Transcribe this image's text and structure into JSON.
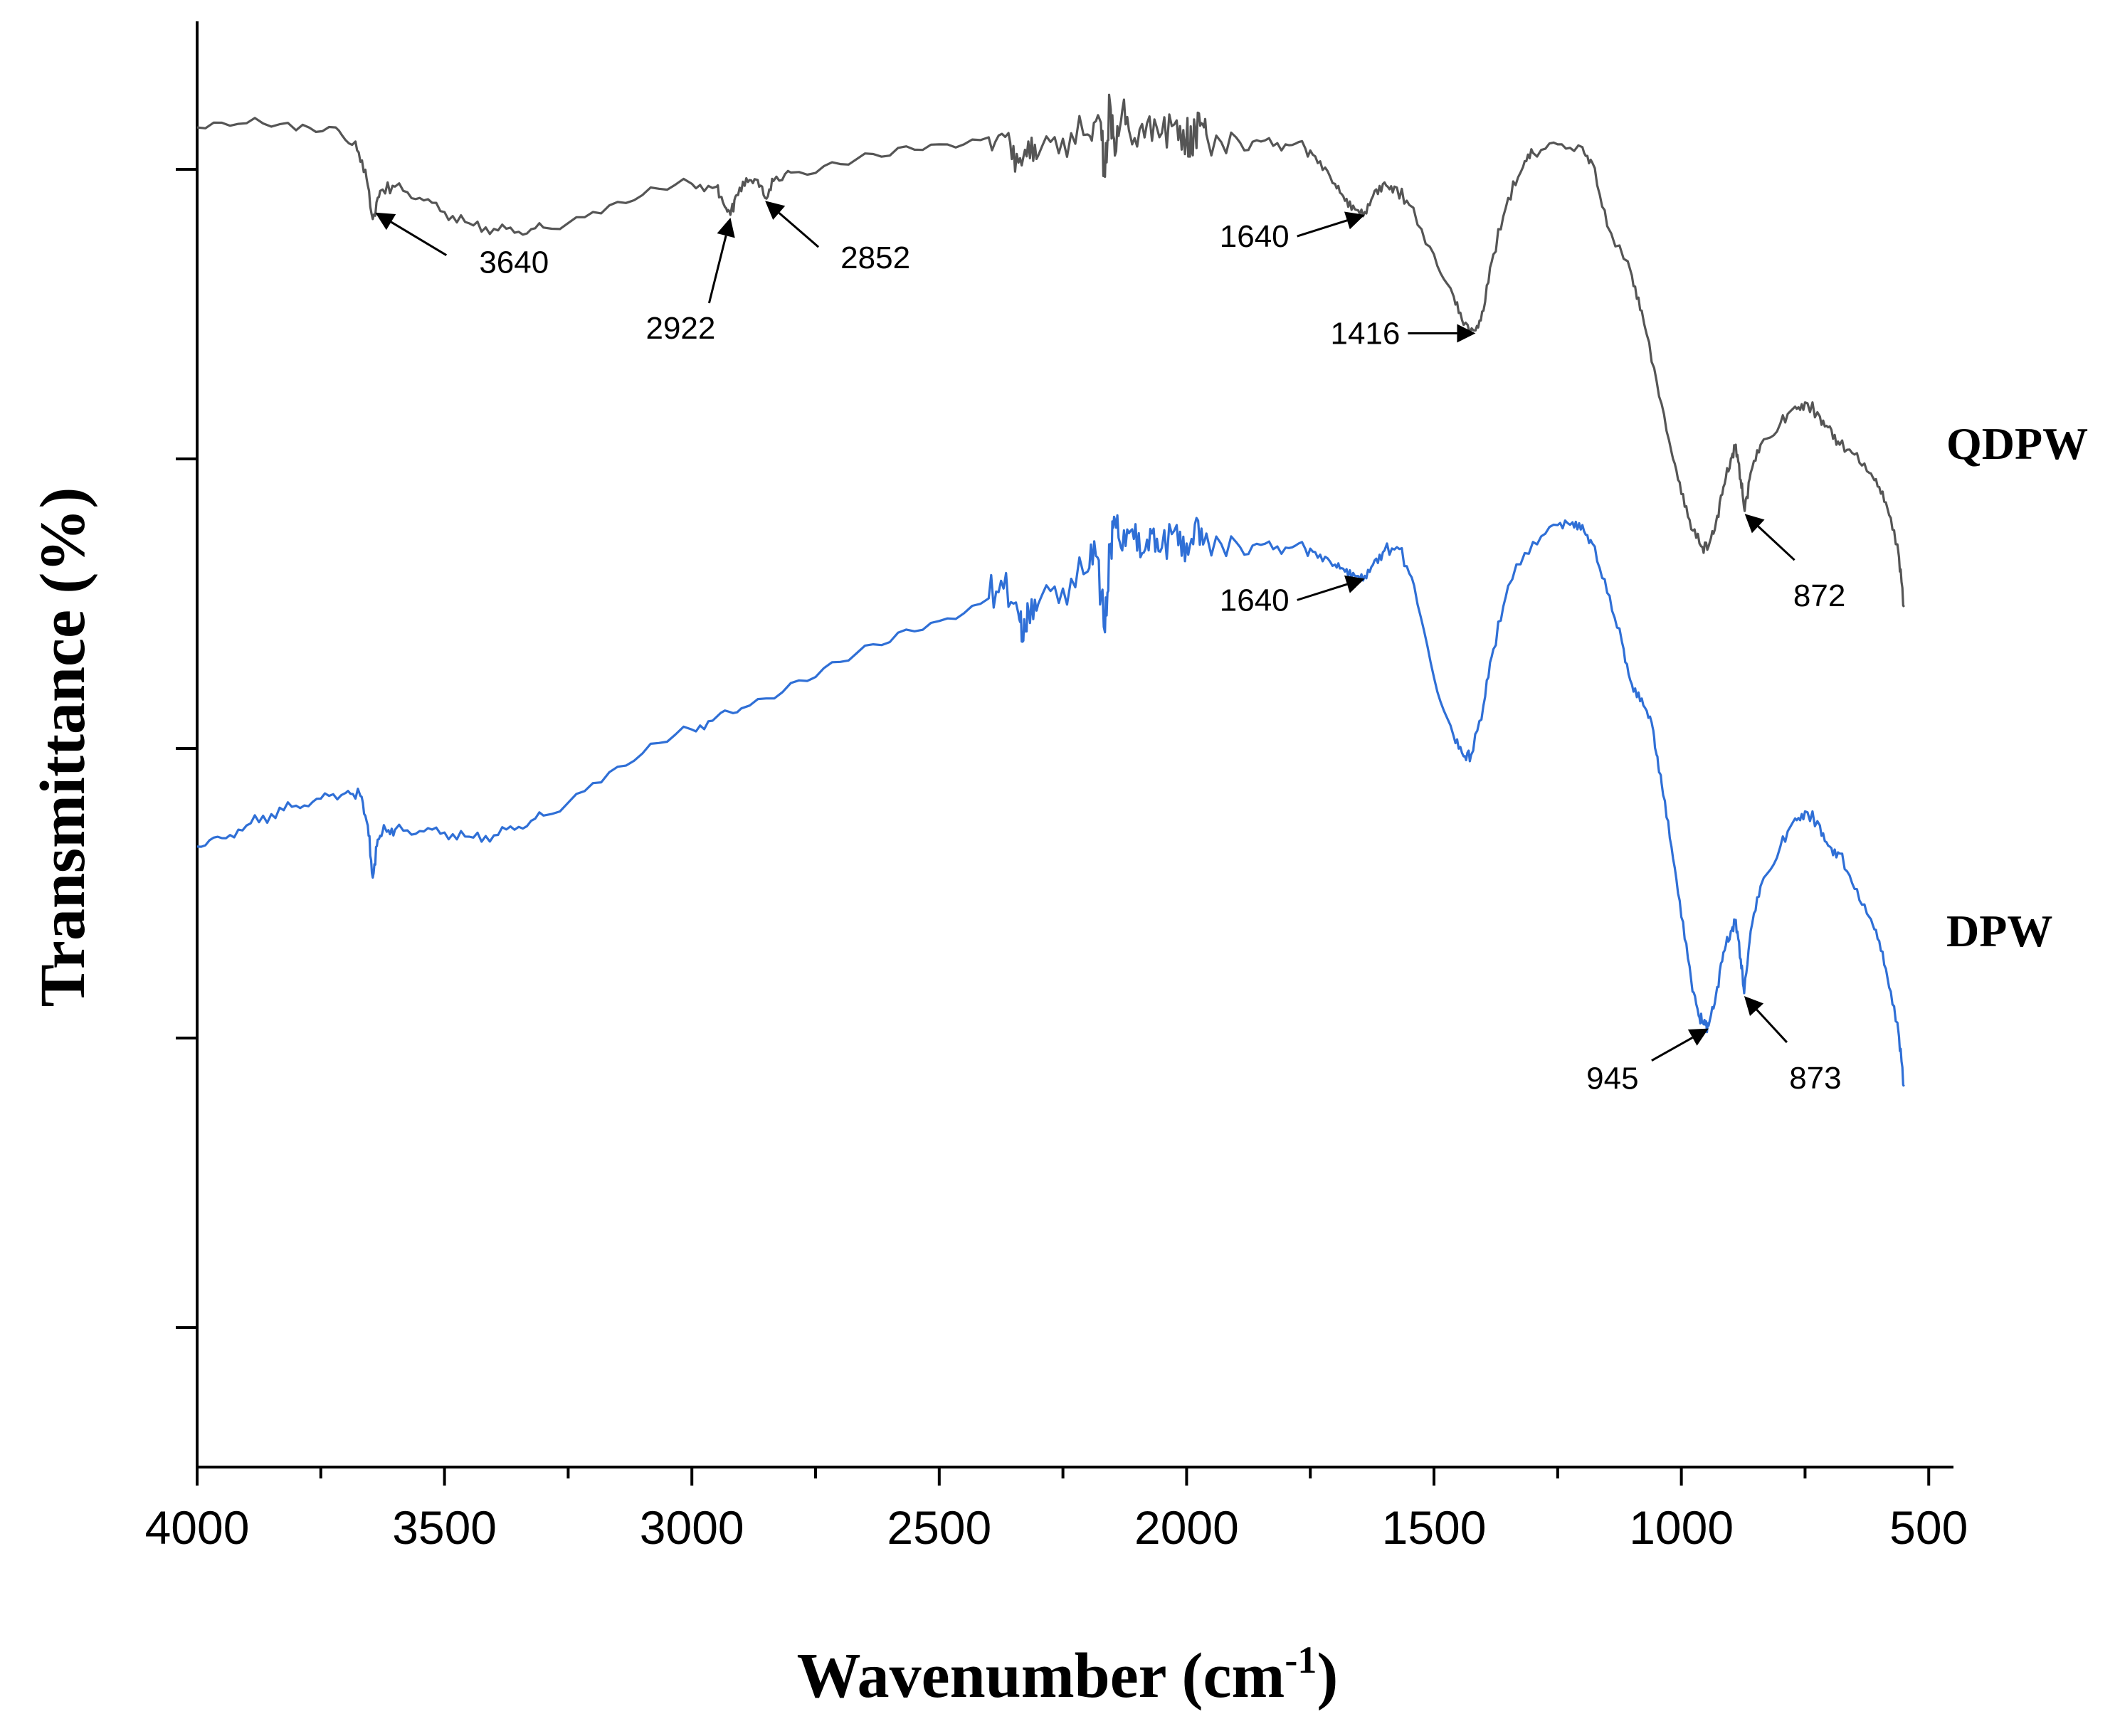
{
  "chart_data": {
    "type": "line",
    "title": "",
    "xlabel_main": "Wavenumber (cm",
    "xlabel_sup": "-1",
    "xlabel_close": ")",
    "ylabel": "Transmittance (%)",
    "xlim": [
      4000,
      450
    ],
    "x_reversed": true,
    "xticks": [
      4000,
      3500,
      3000,
      2500,
      2000,
      1500,
      1000,
      500
    ],
    "ylim": [
      0,
      100
    ],
    "ytick_count": 5,
    "grid": false,
    "colors": {
      "QDPW": "#555555",
      "DPW": "#2f6fd6",
      "axis": "#000000"
    },
    "series": [
      {
        "name": "QDPW",
        "points": [
          [
            4000,
            95
          ],
          [
            3900,
            95.3
          ],
          [
            3800,
            94.8
          ],
          [
            3720,
            95
          ],
          [
            3680,
            94
          ],
          [
            3660,
            92
          ],
          [
            3645,
            88.5
          ],
          [
            3630,
            90.5
          ],
          [
            3600,
            90.8
          ],
          [
            3550,
            90
          ],
          [
            3500,
            89
          ],
          [
            3450,
            88.2
          ],
          [
            3400,
            87.8
          ],
          [
            3350,
            87.6
          ],
          [
            3300,
            87.9
          ],
          [
            3200,
            89
          ],
          [
            3100,
            90.2
          ],
          [
            3000,
            91
          ],
          [
            2950,
            90.8
          ],
          [
            2935,
            89.5
          ],
          [
            2922,
            88.8
          ],
          [
            2910,
            90.2
          ],
          [
            2890,
            91.4
          ],
          [
            2870,
            91.3
          ],
          [
            2852,
            90.0
          ],
          [
            2835,
            91.2
          ],
          [
            2800,
            91.8
          ],
          [
            2700,
            92.4
          ],
          [
            2600,
            93
          ],
          [
            2500,
            93.8
          ],
          [
            2400,
            94.3
          ],
          [
            2360,
            94.6
          ],
          [
            2340,
            92.5
          ],
          [
            2320,
            94
          ],
          [
            2300,
            93
          ],
          [
            2250,
            94.2
          ],
          [
            2200,
            94.5
          ],
          [
            2175,
            95.5
          ],
          [
            2165,
            91.5
          ],
          [
            2155,
            96.8
          ],
          [
            2145,
            93
          ],
          [
            2130,
            96.2
          ],
          [
            2110,
            93.8
          ],
          [
            2080,
            95.3
          ],
          [
            2050,
            94.6
          ],
          [
            2020,
            95.5
          ],
          [
            2000,
            94.4
          ],
          [
            1990,
            93.3
          ],
          [
            1975,
            96
          ],
          [
            1960,
            94.5
          ],
          [
            1900,
            94.3
          ],
          [
            1850,
            94
          ],
          [
            1800,
            93.8
          ],
          [
            1760,
            93.5
          ],
          [
            1730,
            92.6
          ],
          [
            1700,
            91
          ],
          [
            1680,
            89.8
          ],
          [
            1660,
            89.2
          ],
          [
            1640,
            89.0
          ],
          [
            1620,
            90.5
          ],
          [
            1600,
            91.1
          ],
          [
            1580,
            90.8
          ],
          [
            1550,
            89.5
          ],
          [
            1500,
            86
          ],
          [
            1460,
            83
          ],
          [
            1440,
            81
          ],
          [
            1416,
            80.6
          ],
          [
            1400,
            82
          ],
          [
            1380,
            86
          ],
          [
            1350,
            90
          ],
          [
            1320,
            92.2
          ],
          [
            1300,
            93.2
          ],
          [
            1250,
            93.8
          ],
          [
            1200,
            93.6
          ],
          [
            1180,
            92.5
          ],
          [
            1150,
            88
          ],
          [
            1100,
            84.5
          ],
          [
            1080,
            82
          ],
          [
            1050,
            77
          ],
          [
            1020,
            72
          ],
          [
            1000,
            69
          ],
          [
            980,
            66.5
          ],
          [
            960,
            65.3
          ],
          [
            945,
            65.3
          ],
          [
            930,
            67
          ],
          [
            915,
            69.5
          ],
          [
            900,
            71.5
          ],
          [
            890,
            72.5
          ],
          [
            880,
            70
          ],
          [
            872,
            67.8
          ],
          [
            860,
            70.5
          ],
          [
            840,
            72.5
          ],
          [
            800,
            74
          ],
          [
            770,
            75.2
          ],
          [
            750,
            75.5
          ],
          [
            720,
            74.5
          ],
          [
            700,
            73.8
          ],
          [
            680,
            72.5
          ],
          [
            650,
            71.8
          ],
          [
            620,
            70.5
          ],
          [
            600,
            69.5
          ],
          [
            580,
            67.5
          ],
          [
            560,
            64.5
          ],
          [
            550,
            61
          ]
        ]
      },
      {
        "name": "DPW",
        "points": [
          [
            4000,
            44
          ],
          [
            3950,
            44.6
          ],
          [
            3900,
            45.5
          ],
          [
            3850,
            46.3
          ],
          [
            3800,
            46.9
          ],
          [
            3750,
            47.4
          ],
          [
            3700,
            47.8
          ],
          [
            3670,
            47.6
          ],
          [
            3655,
            45.5
          ],
          [
            3645,
            41.8
          ],
          [
            3635,
            44.5
          ],
          [
            3620,
            45.3
          ],
          [
            3600,
            45.2
          ],
          [
            3550,
            45.1
          ],
          [
            3500,
            45
          ],
          [
            3450,
            44.7
          ],
          [
            3400,
            44.8
          ],
          [
            3350,
            45.4
          ],
          [
            3300,
            46.2
          ],
          [
            3200,
            48.5
          ],
          [
            3100,
            50.6
          ],
          [
            3000,
            52.3
          ],
          [
            2950,
            53.2
          ],
          [
            2900,
            53.8
          ],
          [
            2800,
            55.6
          ],
          [
            2700,
            57.1
          ],
          [
            2600,
            58.5
          ],
          [
            2500,
            60
          ],
          [
            2400,
            61.6
          ],
          [
            2370,
            62.3
          ],
          [
            2340,
            60.5
          ],
          [
            2330,
            58.6
          ],
          [
            2320,
            60.8
          ],
          [
            2300,
            61.2
          ],
          [
            2250,
            62.3
          ],
          [
            2200,
            63.5
          ],
          [
            2180,
            64.5
          ],
          [
            2165,
            59.2
          ],
          [
            2155,
            65
          ],
          [
            2145,
            67.2
          ],
          [
            2130,
            65
          ],
          [
            2110,
            66.5
          ],
          [
            2090,
            64.8
          ],
          [
            2070,
            66.2
          ],
          [
            2050,
            65.2
          ],
          [
            2020,
            66.8
          ],
          [
            2000,
            65.5
          ],
          [
            1980,
            67.3
          ],
          [
            1960,
            66.2
          ],
          [
            1900,
            65.6
          ],
          [
            1850,
            65.4
          ],
          [
            1800,
            65.2
          ],
          [
            1760,
            65.1
          ],
          [
            1730,
            64.7
          ],
          [
            1700,
            64
          ],
          [
            1680,
            63.5
          ],
          [
            1660,
            63.2
          ],
          [
            1640,
            63.2
          ],
          [
            1620,
            64.3
          ],
          [
            1600,
            65
          ],
          [
            1570,
            65.1
          ],
          [
            1540,
            62.5
          ],
          [
            1500,
            56
          ],
          [
            1460,
            51.8
          ],
          [
            1440,
            50.4
          ],
          [
            1425,
            50.5
          ],
          [
            1400,
            54
          ],
          [
            1380,
            58
          ],
          [
            1350,
            62.5
          ],
          [
            1300,
            65.6
          ],
          [
            1250,
            66.8
          ],
          [
            1220,
            67.0
          ],
          [
            1200,
            66.8
          ],
          [
            1180,
            65.5
          ],
          [
            1150,
            62
          ],
          [
            1120,
            58.5
          ],
          [
            1100,
            55.5
          ],
          [
            1080,
            54.5
          ],
          [
            1060,
            52.8
          ],
          [
            1050,
            50.5
          ],
          [
            1040,
            48.5
          ],
          [
            1020,
            44
          ],
          [
            1000,
            39
          ],
          [
            980,
            34.5
          ],
          [
            965,
            32
          ],
          [
            955,
            31.4
          ],
          [
            945,
            31.3
          ],
          [
            930,
            33.5
          ],
          [
            915,
            36.5
          ],
          [
            900,
            38
          ],
          [
            890,
            38.8
          ],
          [
            880,
            36
          ],
          [
            873,
            33.6
          ],
          [
            860,
            38
          ],
          [
            840,
            41.2
          ],
          [
            800,
            44
          ],
          [
            770,
            46
          ],
          [
            750,
            46.5
          ],
          [
            720,
            45.5
          ],
          [
            700,
            44
          ],
          [
            680,
            43.5
          ],
          [
            650,
            41
          ],
          [
            620,
            39
          ],
          [
            600,
            37.3
          ],
          [
            580,
            34
          ],
          [
            560,
            30.5
          ],
          [
            550,
            27
          ]
        ]
      }
    ],
    "annotations": [
      {
        "label": "3640",
        "x": 3640,
        "series": "QDPW"
      },
      {
        "label": "2922",
        "x": 2922,
        "series": "QDPW"
      },
      {
        "label": "2852",
        "x": 2852,
        "series": "QDPW"
      },
      {
        "label": "1640",
        "x": 1640,
        "series": "QDPW"
      },
      {
        "label": "1416",
        "x": 1416,
        "series": "QDPW"
      },
      {
        "label": "872",
        "x": 872,
        "series": "QDPW"
      },
      {
        "label": "1640",
        "x": 1640,
        "series": "DPW"
      },
      {
        "label": "945",
        "x": 945,
        "series": "DPW"
      },
      {
        "label": "873",
        "x": 873,
        "series": "DPW"
      }
    ]
  }
}
